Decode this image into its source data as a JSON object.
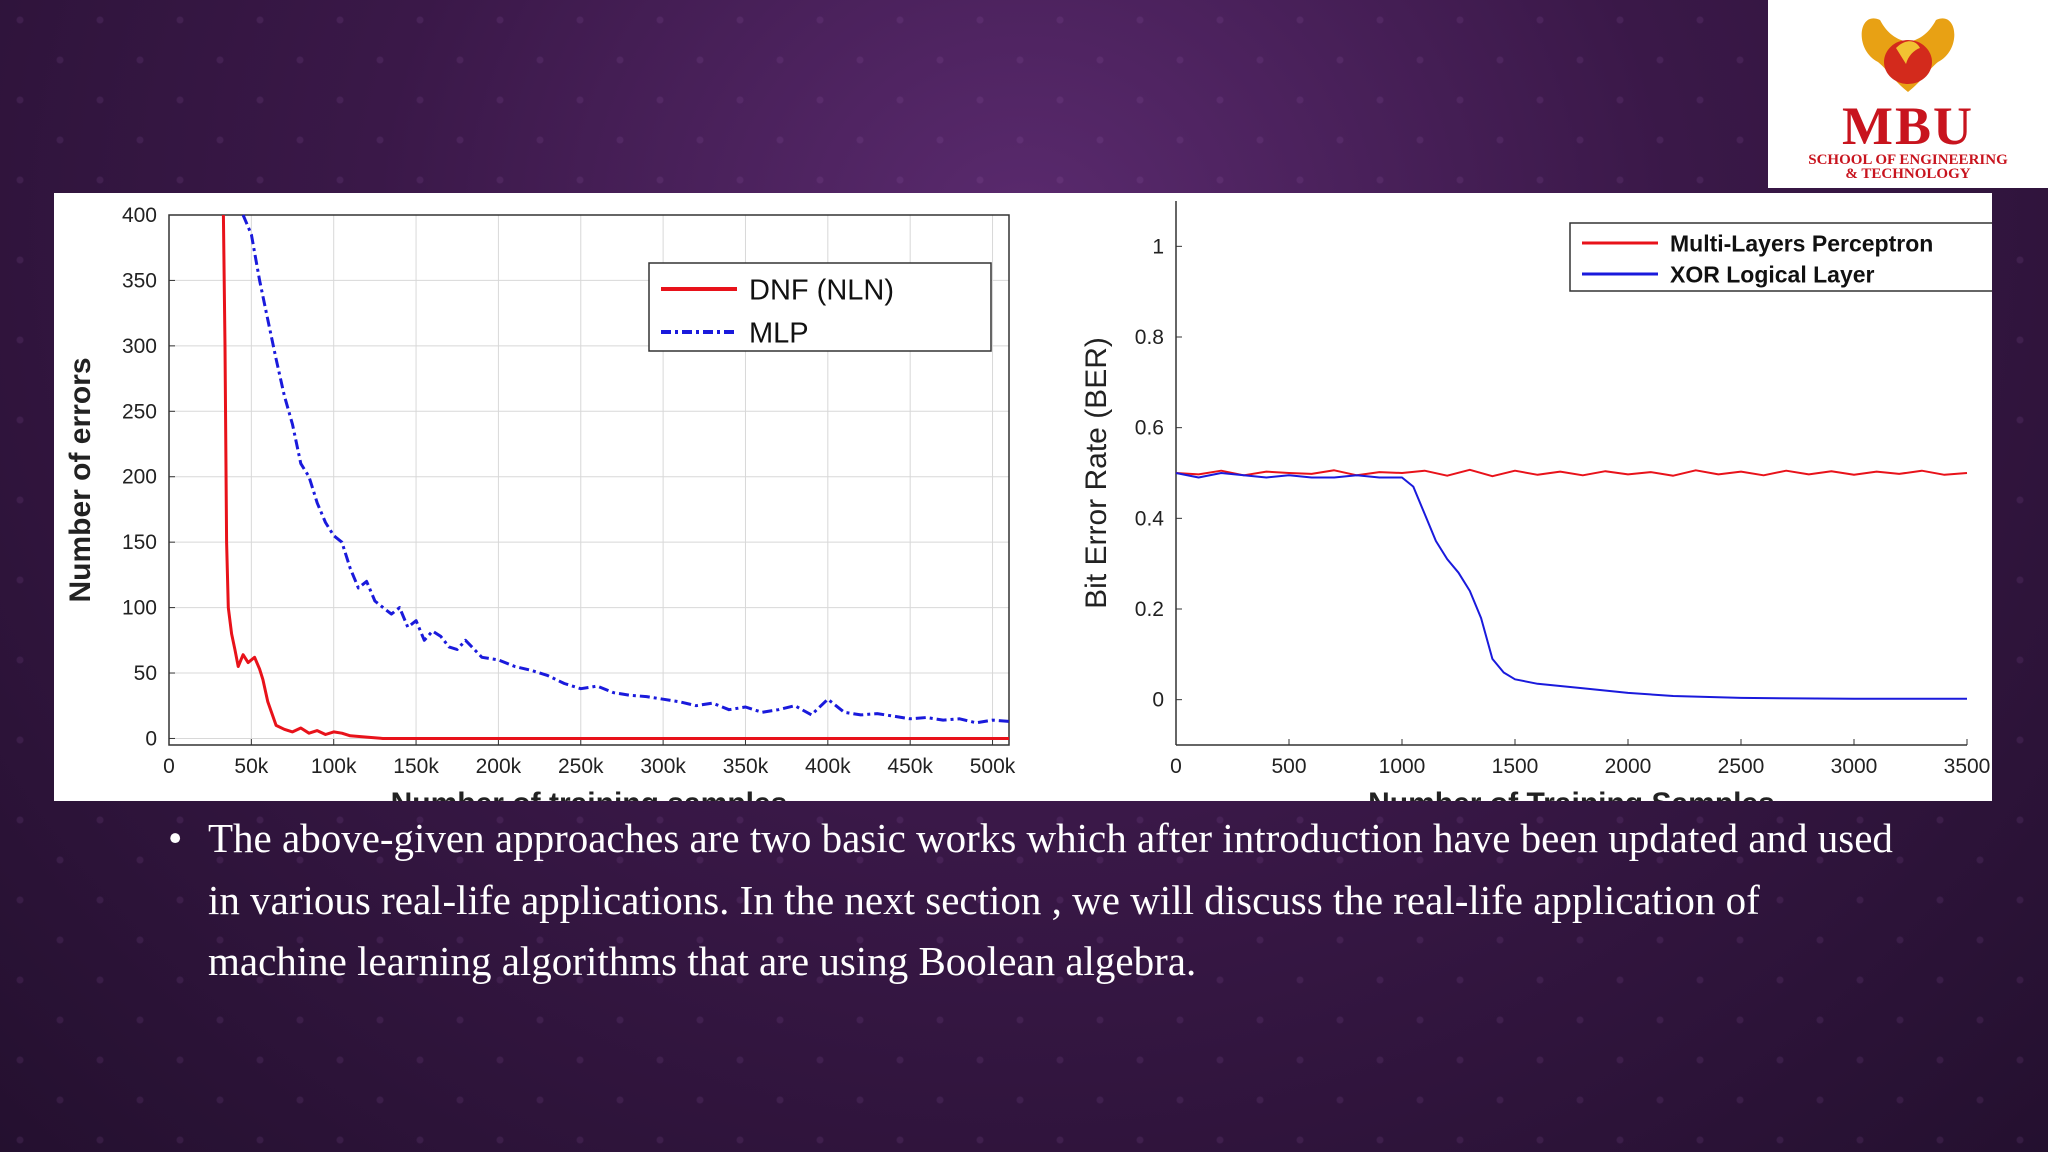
{
  "logo": {
    "main": "MBU",
    "sub_line1": "SCHOOL OF ENGINEERING",
    "sub_line2": "& TECHNOLOGY"
  },
  "bullet": {
    "marker": "•",
    "text": "The above-given approaches are two basic works which after introduction have been updated and used in various real-life applications. In the next section , we will discuss the real-life application of machine learning algorithms that are using Boolean algebra."
  },
  "colors": {
    "red": "#e8121a",
    "blue": "#1a1adc",
    "grid": "#d8d8d8"
  },
  "chart_data": [
    {
      "type": "line",
      "title": "",
      "xlabel": "Number of training samples",
      "ylabel": "Number of errors",
      "xlim": [
        0,
        510000
      ],
      "ylim": [
        -5,
        400
      ],
      "x_ticks": [
        0,
        50000,
        100000,
        150000,
        200000,
        250000,
        300000,
        350000,
        400000,
        450000,
        500000
      ],
      "x_tick_labels": [
        "0",
        "50k",
        "100k",
        "150k",
        "200k",
        "250k",
        "300k",
        "350k",
        "400k",
        "450k",
        "500k"
      ],
      "y_ticks": [
        0,
        50,
        100,
        150,
        200,
        250,
        300,
        350,
        400
      ],
      "y_tick_labels": [
        "0",
        "50",
        "100",
        "150",
        "200",
        "250",
        "300",
        "350",
        "400"
      ],
      "grid": true,
      "legend_position": "top-right",
      "series": [
        {
          "name": "DNF (NLN)",
          "style": "solid",
          "color": "#e8121a",
          "x": [
            33000,
            34000,
            35000,
            36000,
            38000,
            40000,
            42000,
            45000,
            48000,
            52000,
            55000,
            57000,
            60000,
            65000,
            70000,
            75000,
            80000,
            85000,
            90000,
            95000,
            100000,
            105000,
            110000,
            120000,
            130000,
            150000,
            200000,
            300000,
            400000,
            510000
          ],
          "y": [
            400,
            300,
            150,
            100,
            80,
            68,
            55,
            64,
            58,
            62,
            53,
            45,
            28,
            10,
            7,
            5,
            8,
            4,
            6,
            3,
            5,
            4,
            2,
            1,
            0,
            0,
            0,
            0,
            0,
            0
          ]
        },
        {
          "name": "MLP",
          "style": "dashdot",
          "color": "#1a1adc",
          "x": [
            45000,
            50000,
            55000,
            60000,
            65000,
            70000,
            75000,
            80000,
            85000,
            90000,
            95000,
            100000,
            105000,
            110000,
            115000,
            120000,
            125000,
            130000,
            135000,
            140000,
            145000,
            150000,
            155000,
            160000,
            165000,
            170000,
            175000,
            180000,
            190000,
            200000,
            210000,
            220000,
            230000,
            240000,
            250000,
            260000,
            270000,
            280000,
            290000,
            300000,
            310000,
            320000,
            330000,
            340000,
            350000,
            360000,
            370000,
            380000,
            390000,
            400000,
            410000,
            420000,
            430000,
            440000,
            450000,
            460000,
            470000,
            480000,
            490000,
            500000,
            510000
          ],
          "y": [
            400,
            385,
            350,
            320,
            290,
            262,
            240,
            210,
            200,
            180,
            165,
            155,
            150,
            130,
            115,
            120,
            105,
            100,
            95,
            100,
            85,
            90,
            75,
            82,
            78,
            70,
            68,
            75,
            62,
            60,
            55,
            52,
            48,
            42,
            38,
            40,
            35,
            33,
            32,
            30,
            28,
            25,
            27,
            22,
            24,
            20,
            22,
            25,
            18,
            30,
            20,
            18,
            19,
            17,
            15,
            16,
            14,
            15,
            12,
            14,
            13
          ]
        }
      ]
    },
    {
      "type": "line",
      "title": "",
      "xlabel": "Number of Training Samples",
      "ylabel": "Bit Error Rate (BER)",
      "xlim": [
        0,
        3500
      ],
      "ylim": [
        -0.1,
        1.1
      ],
      "x_ticks": [
        0,
        500,
        1000,
        1500,
        2000,
        2500,
        3000,
        3500
      ],
      "x_tick_labels": [
        "0",
        "500",
        "1000",
        "1500",
        "2000",
        "2500",
        "3000",
        "3500"
      ],
      "y_ticks": [
        0,
        0.2,
        0.4,
        0.6,
        0.8,
        1
      ],
      "y_tick_labels": [
        "0",
        "0.2",
        "0.4",
        "0.6",
        "0.8",
        "1"
      ],
      "grid": false,
      "legend_position": "top-right",
      "series": [
        {
          "name": "Multi-Layers Perceptron",
          "style": "solid",
          "color": "#e8121a",
          "x": [
            0,
            100,
            200,
            300,
            400,
            500,
            600,
            700,
            800,
            900,
            1000,
            1100,
            1200,
            1300,
            1400,
            1500,
            1600,
            1700,
            1800,
            1900,
            2000,
            2100,
            2200,
            2300,
            2400,
            2500,
            2600,
            2700,
            2800,
            2900,
            3000,
            3100,
            3200,
            3300,
            3400,
            3500
          ],
          "y": [
            0.5,
            0.497,
            0.505,
            0.495,
            0.503,
            0.5,
            0.498,
            0.506,
            0.495,
            0.502,
            0.5,
            0.505,
            0.494,
            0.507,
            0.493,
            0.505,
            0.496,
            0.503,
            0.495,
            0.504,
            0.497,
            0.502,
            0.494,
            0.506,
            0.497,
            0.503,
            0.495,
            0.505,
            0.497,
            0.504,
            0.496,
            0.503,
            0.498,
            0.505,
            0.496,
            0.5
          ]
        },
        {
          "name": "XOR Logical Layer",
          "style": "solid",
          "color": "#1a1adc",
          "x": [
            0,
            100,
            200,
            300,
            400,
            500,
            600,
            700,
            800,
            900,
            1000,
            1050,
            1100,
            1150,
            1200,
            1250,
            1300,
            1350,
            1400,
            1450,
            1500,
            1600,
            1800,
            2000,
            2200,
            2500,
            3000,
            3500
          ],
          "y": [
            0.5,
            0.49,
            0.5,
            0.495,
            0.49,
            0.495,
            0.49,
            0.49,
            0.495,
            0.49,
            0.49,
            0.47,
            0.41,
            0.35,
            0.31,
            0.28,
            0.24,
            0.18,
            0.09,
            0.06,
            0.045,
            0.035,
            0.025,
            0.015,
            0.008,
            0.004,
            0.002,
            0.002
          ]
        }
      ]
    }
  ]
}
